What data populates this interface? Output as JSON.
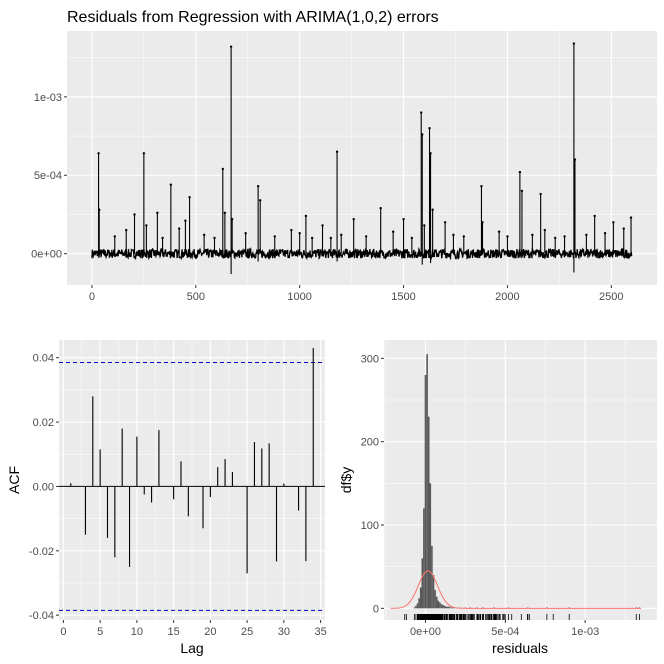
{
  "theme": {
    "panel_bg": "#ebebeb",
    "grid_major": "#ffffff",
    "ink": "#000000",
    "bar_fill": "#595959",
    "ci_color": "#0000cc",
    "density_color": "#f8766d"
  },
  "chart_data": [
    {
      "type": "line",
      "title": "Residuals from Regression with ARIMA(1,0,2) errors",
      "xlabel": "",
      "ylabel": "",
      "xlim": [
        -120,
        2720
      ],
      "ylim": [
        -0.0002,
        0.00142
      ],
      "x_ticks": [
        0,
        500,
        1000,
        1500,
        2000,
        2500
      ],
      "x_tick_labels": [
        "0",
        "500",
        "1000",
        "1500",
        "2000",
        "2500"
      ],
      "y_ticks": [
        0,
        0.0005,
        0.001
      ],
      "y_tick_labels": [
        "0e+00",
        "5e-04",
        "1e-03"
      ],
      "n": 2600,
      "baseline_band": [
        -3e-05,
        3e-05
      ],
      "spikes": [
        {
          "x": 32,
          "y": 0.00064
        },
        {
          "x": 35,
          "y": 0.00028
        },
        {
          "x": 110,
          "y": 0.00011
        },
        {
          "x": 165,
          "y": 0.00015
        },
        {
          "x": 205,
          "y": 0.00025
        },
        {
          "x": 250,
          "y": 0.00064
        },
        {
          "x": 262,
          "y": 0.00018
        },
        {
          "x": 315,
          "y": 0.00026
        },
        {
          "x": 340,
          "y": 0.0001
        },
        {
          "x": 380,
          "y": 0.00044
        },
        {
          "x": 420,
          "y": 0.00016
        },
        {
          "x": 450,
          "y": 0.00021
        },
        {
          "x": 470,
          "y": 0.00036
        },
        {
          "x": 540,
          "y": 0.00012
        },
        {
          "x": 590,
          "y": 0.0001
        },
        {
          "x": 630,
          "y": 0.00054
        },
        {
          "x": 640,
          "y": 0.00026
        },
        {
          "x": 670,
          "y": 0.00132
        },
        {
          "x": 675,
          "y": 0.00022
        },
        {
          "x": 740,
          "y": 0.00013
        },
        {
          "x": 800,
          "y": 0.00043
        },
        {
          "x": 810,
          "y": 0.00034
        },
        {
          "x": 880,
          "y": 0.00011
        },
        {
          "x": 960,
          "y": 0.00015
        },
        {
          "x": 1000,
          "y": 0.00013
        },
        {
          "x": 1030,
          "y": 0.00024
        },
        {
          "x": 1060,
          "y": 0.0001
        },
        {
          "x": 1110,
          "y": 0.00018
        },
        {
          "x": 1150,
          "y": 0.0001
        },
        {
          "x": 1180,
          "y": 0.00065
        },
        {
          "x": 1200,
          "y": 0.00012
        },
        {
          "x": 1260,
          "y": 0.00022
        },
        {
          "x": 1320,
          "y": 0.00011
        },
        {
          "x": 1390,
          "y": 0.00029
        },
        {
          "x": 1450,
          "y": 0.00014
        },
        {
          "x": 1500,
          "y": 0.00022
        },
        {
          "x": 1540,
          "y": 0.0001
        },
        {
          "x": 1585,
          "y": 0.0009
        },
        {
          "x": 1590,
          "y": 0.00076
        },
        {
          "x": 1600,
          "y": 0.00018
        },
        {
          "x": 1625,
          "y": 0.0008
        },
        {
          "x": 1630,
          "y": 0.00064
        },
        {
          "x": 1640,
          "y": 0.00028
        },
        {
          "x": 1700,
          "y": 0.0002
        },
        {
          "x": 1740,
          "y": 0.00012
        },
        {
          "x": 1790,
          "y": 0.00011
        },
        {
          "x": 1875,
          "y": 0.00043
        },
        {
          "x": 1880,
          "y": 0.0002
        },
        {
          "x": 1960,
          "y": 0.00014
        },
        {
          "x": 2000,
          "y": 0.00011
        },
        {
          "x": 2060,
          "y": 0.00052
        },
        {
          "x": 2070,
          "y": 0.0004
        },
        {
          "x": 2120,
          "y": 0.00012
        },
        {
          "x": 2160,
          "y": 0.00038
        },
        {
          "x": 2180,
          "y": 0.00015
        },
        {
          "x": 2230,
          "y": 0.0001
        },
        {
          "x": 2275,
          "y": 0.00011
        },
        {
          "x": 2320,
          "y": 0.00134
        },
        {
          "x": 2325,
          "y": 0.0006
        },
        {
          "x": 2380,
          "y": 0.00012
        },
        {
          "x": 2420,
          "y": 0.00024
        },
        {
          "x": 2470,
          "y": 0.00013
        },
        {
          "x": 2510,
          "y": 0.0002
        },
        {
          "x": 2560,
          "y": 0.00016
        },
        {
          "x": 2595,
          "y": 0.00023
        }
      ],
      "dips": [
        {
          "x": 670,
          "y": -0.00013
        },
        {
          "x": 2320,
          "y": -0.00012
        },
        {
          "x": 1590,
          "y": -7e-05
        },
        {
          "x": 1630,
          "y": -6e-05
        },
        {
          "x": 800,
          "y": -5e-05
        },
        {
          "x": 1180,
          "y": -5e-05
        }
      ]
    },
    {
      "type": "bar",
      "xlabel": "Lag",
      "ylabel": "ACF",
      "xlim": [
        -0.6,
        35.6
      ],
      "ylim": [
        -0.0415,
        0.0455
      ],
      "x_ticks": [
        0,
        5,
        10,
        15,
        20,
        25,
        30,
        35
      ],
      "x_tick_labels": [
        "0",
        "5",
        "10",
        "15",
        "20",
        "25",
        "30",
        "35"
      ],
      "y_ticks": [
        -0.04,
        -0.02,
        0,
        0.02,
        0.04
      ],
      "y_tick_labels": [
        "-0.04",
        "-0.02",
        "0.00",
        "0.02",
        "0.04"
      ],
      "ci": 0.0385,
      "lags": [
        1,
        2,
        3,
        4,
        5,
        6,
        7,
        8,
        9,
        10,
        11,
        12,
        13,
        14,
        15,
        16,
        17,
        18,
        19,
        20,
        21,
        22,
        23,
        24,
        25,
        26,
        27,
        28,
        29,
        30,
        31,
        32,
        33,
        34
      ],
      "values": [
        0.001,
        0.0,
        -0.015,
        0.028,
        0.0115,
        -0.016,
        -0.022,
        0.018,
        -0.025,
        0.0155,
        -0.0025,
        -0.005,
        0.0175,
        0.0,
        -0.004,
        0.0078,
        -0.0093,
        0.0,
        -0.013,
        -0.0033,
        0.006,
        0.0085,
        0.0045,
        0.0,
        -0.027,
        0.0138,
        0.0118,
        0.0134,
        -0.0233,
        0.0009,
        0.0,
        -0.0075,
        -0.0232,
        0.043
      ]
    },
    {
      "type": "histogram",
      "xlabel": "residuals",
      "ylabel": "df$y",
      "xlim": [
        -0.00026,
        0.00145
      ],
      "ylim": [
        -14,
        322
      ],
      "x_ticks": [
        0,
        0.0005,
        0.001
      ],
      "x_tick_labels": [
        "0e+00",
        "5e-04",
        "1e-03"
      ],
      "y_ticks": [
        0,
        100,
        200,
        300
      ],
      "y_tick_labels": [
        "0",
        "100",
        "200",
        "300"
      ],
      "bin_width": 1e-05,
      "bins": [
        {
          "x": -7e-05,
          "count": 1
        },
        {
          "x": -6e-05,
          "count": 3
        },
        {
          "x": -5e-05,
          "count": 6
        },
        {
          "x": -4e-05,
          "count": 12
        },
        {
          "x": -3e-05,
          "count": 25
        },
        {
          "x": -2e-05,
          "count": 60
        },
        {
          "x": -1e-05,
          "count": 120
        },
        {
          "x": 0.0,
          "count": 280
        },
        {
          "x": 1e-05,
          "count": 305
        },
        {
          "x": 2e-05,
          "count": 230
        },
        {
          "x": 3e-05,
          "count": 150
        },
        {
          "x": 4e-05,
          "count": 75
        },
        {
          "x": 5e-05,
          "count": 40
        },
        {
          "x": 6e-05,
          "count": 22
        },
        {
          "x": 7e-05,
          "count": 14
        },
        {
          "x": 8e-05,
          "count": 9
        },
        {
          "x": 9e-05,
          "count": 7
        },
        {
          "x": 0.0001,
          "count": 5
        },
        {
          "x": 0.00011,
          "count": 4
        },
        {
          "x": 0.00012,
          "count": 3
        },
        {
          "x": 0.00013,
          "count": 2
        },
        {
          "x": 0.00014,
          "count": 2
        },
        {
          "x": 0.00015,
          "count": 2
        },
        {
          "x": 0.00016,
          "count": 1
        },
        {
          "x": 0.00017,
          "count": 1
        },
        {
          "x": 0.00018,
          "count": 1
        },
        {
          "x": 0.0002,
          "count": 1
        },
        {
          "x": 0.00022,
          "count": 1
        },
        {
          "x": 0.00025,
          "count": 1
        },
        {
          "x": 0.00028,
          "count": 1
        },
        {
          "x": 0.00032,
          "count": 1
        },
        {
          "x": 0.00036,
          "count": 1
        },
        {
          "x": 0.00043,
          "count": 1
        },
        {
          "x": 0.00052,
          "count": 1
        },
        {
          "x": 0.00064,
          "count": 1
        },
        {
          "x": 0.00076,
          "count": 1
        },
        {
          "x": 0.0009,
          "count": 1
        },
        {
          "x": 0.00132,
          "count": 1
        },
        {
          "x": 0.00134,
          "count": 1
        }
      ],
      "density": {
        "mean": 1.5e-05,
        "sd": 6e-05,
        "peak": 45
      }
    }
  ]
}
